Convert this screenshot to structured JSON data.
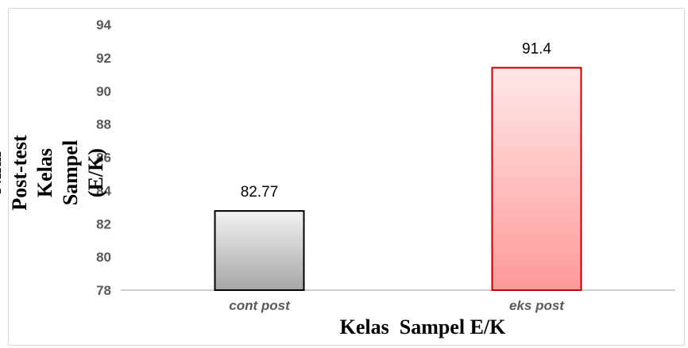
{
  "chart_data": {
    "type": "bar",
    "categories": [
      "cont post",
      "eks post"
    ],
    "values": [
      82.77,
      91.4
    ],
    "data_labels": [
      "82.77",
      "91.4"
    ],
    "xlabel": "Kelas  Sampel E/K",
    "ylabel": "Nilai Post-test Kelas Sampel (E/K)",
    "ylim": [
      78,
      94
    ],
    "yticks": [
      78,
      80,
      82,
      84,
      86,
      88,
      90,
      92,
      94
    ],
    "grid": false,
    "legend": "none",
    "bar_colors": [
      {
        "top": "#f2f2f2",
        "bottom": "#a6a6a6",
        "stroke": "#000000"
      },
      {
        "top": "#ffe8e8",
        "bottom": "#ff9999",
        "stroke": "#c00000"
      }
    ]
  }
}
